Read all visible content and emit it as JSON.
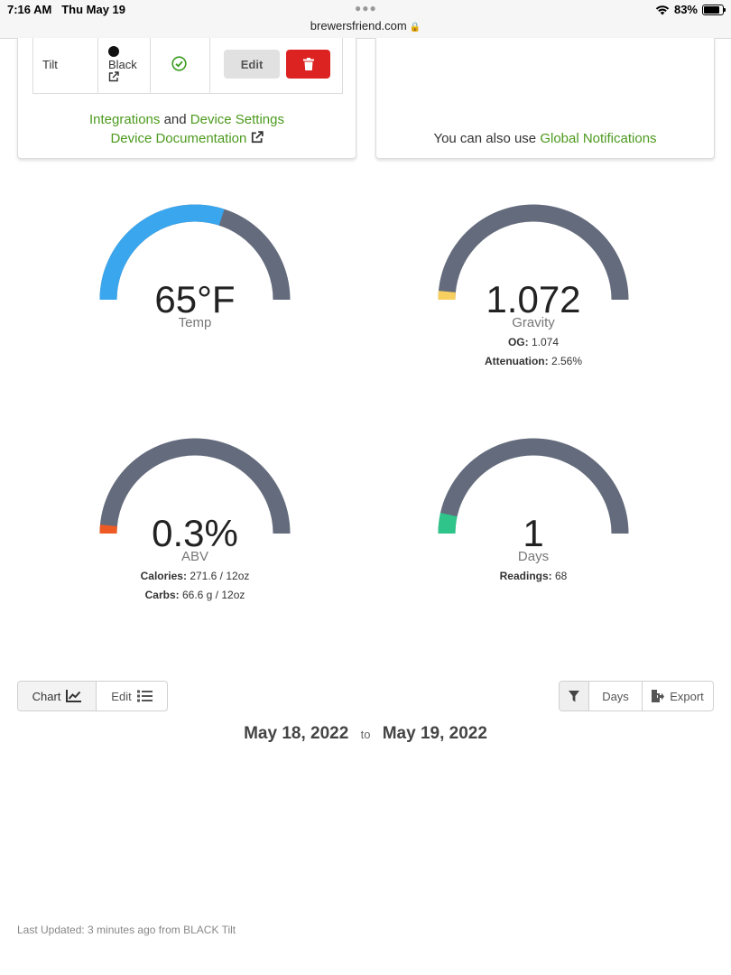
{
  "status_bar": {
    "time": "7:16 AM",
    "date": "Thu May 19",
    "url": "brewersfriend.com",
    "battery": "83%",
    "battery_level": 0.83
  },
  "device_table": {
    "name": "Tilt",
    "color": "Black",
    "edit_label": "Edit"
  },
  "device_links": {
    "integrations": "Integrations",
    "and": "and",
    "device_settings": "Device Settings",
    "documentation": "Device Documentation"
  },
  "notifications": {
    "prefix": "You can also use",
    "link": "Global Notifications"
  },
  "gauges": {
    "temp": {
      "value": "65°F",
      "label": "Temp",
      "fill_fraction": 0.6,
      "color": "#3aa6ee"
    },
    "gravity": {
      "value": "1.072",
      "label": "Gravity",
      "og_label": "OG:",
      "og_value": "1.074",
      "att_label": "Attenuation:",
      "att_value": "2.56%",
      "fill_fraction": 0.03,
      "color": "#f7cf5f"
    },
    "abv": {
      "value": "0.3%",
      "label": "ABV",
      "cal_label": "Calories:",
      "cal_value": "271.6 / 12oz",
      "carbs_label": "Carbs:",
      "carbs_value": "66.6 g / 12oz",
      "fill_fraction": 0.03,
      "color": "#ee5a24"
    },
    "days": {
      "value": "1",
      "label": "Days",
      "readings_label": "Readings:",
      "readings_value": "68",
      "fill_fraction": 0.07,
      "color": "#2ec48a"
    },
    "track_color": "#646b7c"
  },
  "toolbar": {
    "chart_label": "Chart",
    "edit_label": "Edit",
    "days_label": "Days",
    "export_label": "Export"
  },
  "date_range": {
    "start": "May 18, 2022",
    "to": "to",
    "end": "May 19, 2022"
  },
  "footer": {
    "last_updated": "Last Updated: 3 minutes ago from BLACK Tilt"
  }
}
